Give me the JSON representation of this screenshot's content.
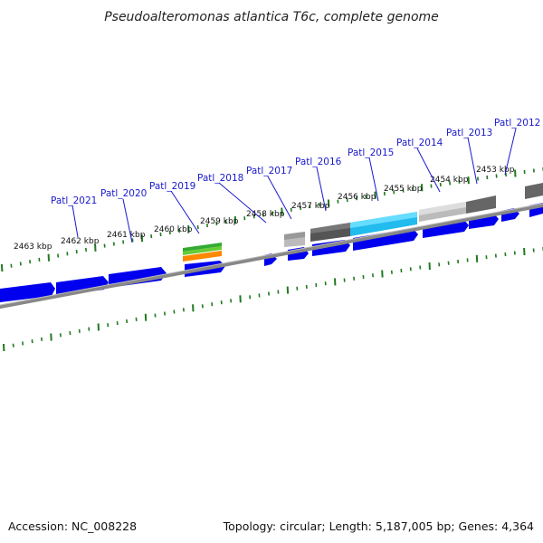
{
  "title": "Pseudoalteromonas atlantica T6c, complete genome",
  "footer": {
    "accession": "Accession: NC_008228",
    "summary": "Topology: circular; Length: 5,187,005 bp; Genes: 4,364"
  },
  "kbp_labels": [
    "2463 kbp",
    "2462 kbp",
    "2461 kbp",
    "2460 kbp",
    "2459 kbp",
    "2458 kbp",
    "2457 kbp",
    "2456 kbp",
    "2455 kbp",
    "2454 kbp",
    "2453 kbp"
  ],
  "gene_labels": [
    "Patl_2021",
    "Patl_2020",
    "Patl_2019",
    "Patl_2018",
    "Patl_2017",
    "Patl_2016",
    "Patl_2015",
    "Patl_2014",
    "Patl_2013",
    "Patl_2012"
  ],
  "colors": {
    "gene": "#0000ee",
    "backbone": "#808080",
    "ticks": "#1f7a1f",
    "label": "#1a1acc",
    "highlight_cyan": "#22bbee",
    "gc_green": "#33aa33",
    "gc_orange": "#ff8800"
  }
}
